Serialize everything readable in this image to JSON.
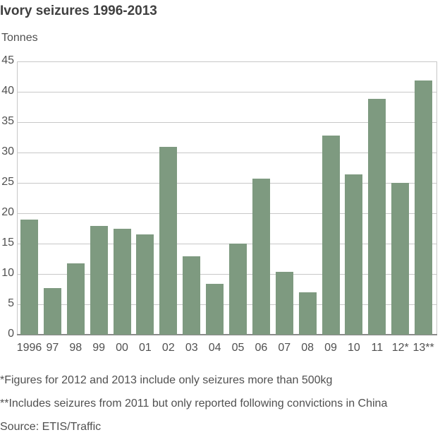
{
  "title": "Ivory seizures 1996-2013",
  "y_unit_label": "Tonnes",
  "footnotes": [
    " *Figures for 2012 and 2013 include only seizures more than 500kg",
    "**Includes seizures from 2011 but only reported following convictions in China"
  ],
  "source": "Source: ETIS/Traffic",
  "colors": {
    "bar": "#7e9a80",
    "grid": "#c8c8c8",
    "text": "#505050"
  },
  "chart_data": {
    "type": "bar",
    "title": "Ivory seizures 1996-2013",
    "xlabel": "",
    "ylabel": "Tonnes",
    "ylim": [
      0,
      45
    ],
    "yticks": [
      0,
      5,
      10,
      15,
      20,
      25,
      30,
      35,
      40,
      45
    ],
    "grid": true,
    "legend": null,
    "categories": [
      "1996",
      "97",
      "98",
      "99",
      "00",
      "01",
      "02",
      "03",
      "04",
      "05",
      "06",
      "07",
      "08",
      "09",
      "10",
      "11",
      "12*",
      "13**"
    ],
    "values": [
      19.0,
      7.7,
      11.7,
      17.9,
      17.4,
      16.5,
      30.9,
      12.9,
      8.4,
      15.0,
      25.7,
      10.3,
      7.0,
      32.8,
      26.4,
      38.8,
      25.0,
      41.9
    ],
    "annotations": [
      "*Figures for 2012 and 2013 include only seizures more than 500kg",
      "**Includes seizures from 2011 but only reported following convictions in China"
    ],
    "source": "ETIS/Traffic"
  }
}
